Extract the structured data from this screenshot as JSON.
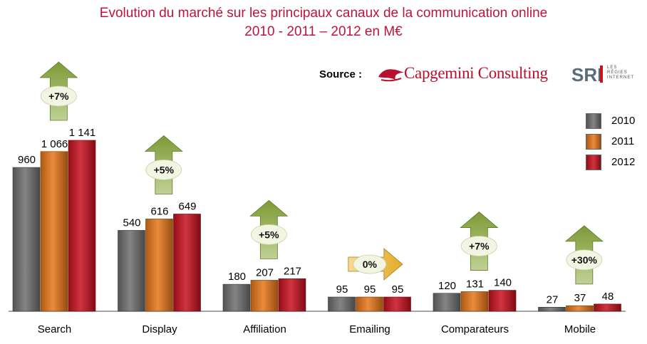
{
  "header": {
    "title_line1": "Evolution du marché sur les principaux canaux de la communication online",
    "title_line2": "2010 - 2011 – 2012 en M€"
  },
  "source": {
    "label": "Source :",
    "logo1_text": "Capgemini Consulting",
    "logo2_mark": "SRI",
    "logo2_text": [
      "LES",
      "RÉGIES",
      "INTERNET"
    ]
  },
  "colors": {
    "title": "#c0143c",
    "s2010": "#6e6e6e",
    "s2011": "#e8761a",
    "s2012": "#c8101e",
    "arrow": "#8cab3c",
    "arrow_right": "#f0b429"
  },
  "chart_data": {
    "type": "bar",
    "categories": [
      "Search",
      "Display",
      "Affiliation",
      "Emailing",
      "Comparateurs",
      "Mobile"
    ],
    "series": [
      {
        "name": "2010",
        "values": [
          960,
          540,
          180,
          95,
          120,
          27
        ],
        "labels": [
          "960",
          "540",
          "180",
          "95",
          "120",
          "27"
        ]
      },
      {
        "name": "2011",
        "values": [
          1066,
          616,
          207,
          95,
          131,
          37
        ],
        "labels": [
          "1 066",
          "616",
          "207",
          "95",
          "131",
          "37"
        ]
      },
      {
        "name": "2012",
        "values": [
          1141,
          649,
          217,
          95,
          140,
          48
        ],
        "labels": [
          "1 141",
          "649",
          "217",
          "95",
          "140",
          "48"
        ]
      }
    ],
    "growth": [
      "+7%",
      "+5%",
      "+5%",
      "0%",
      "+7%",
      "+30%"
    ],
    "growth_direction": [
      "up",
      "up",
      "up",
      "right",
      "up",
      "up"
    ],
    "ylim": [
      0,
      1141
    ],
    "legend_position": "right",
    "grid": false
  }
}
